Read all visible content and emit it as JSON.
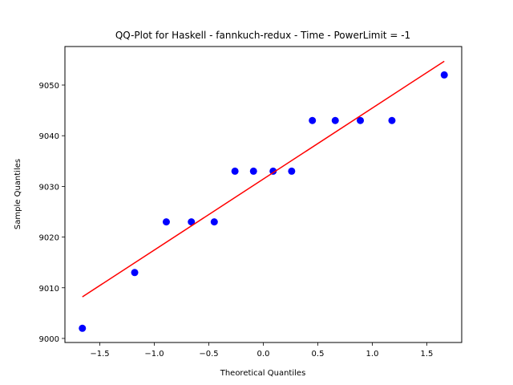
{
  "chart_data": {
    "type": "scatter",
    "title": "QQ-Plot for Haskell - fannkuch-redux - Time - PowerLimit = -1",
    "xlabel": "Theoretical Quantiles",
    "ylabel": "Sample Quantiles",
    "xlim": [
      -1.82,
      1.82
    ],
    "ylim": [
      8999.2,
      9057.6
    ],
    "xticks": [
      -1.5,
      -1.0,
      -0.5,
      0.0,
      0.5,
      1.0,
      1.5
    ],
    "xtick_labels": [
      "−1.5",
      "−1.0",
      "−0.5",
      "0.0",
      "0.5",
      "1.0",
      "1.5"
    ],
    "yticks": [
      9000,
      9010,
      9020,
      9030,
      9040,
      9050
    ],
    "ytick_labels": [
      "9000",
      "9010",
      "9020",
      "9030",
      "9040",
      "9050"
    ],
    "grid": false,
    "series": [
      {
        "kind": "points",
        "color": "#0000ff",
        "x": [
          -1.66,
          -1.18,
          -0.89,
          -0.66,
          -0.45,
          -0.26,
          -0.09,
          0.09,
          0.26,
          0.45,
          0.66,
          0.89,
          1.18,
          1.66
        ],
        "y": [
          9002,
          9013,
          9023,
          9023,
          9023,
          9033,
          9033,
          9033,
          9033,
          9043,
          9043,
          9043,
          9043,
          9052
        ]
      },
      {
        "kind": "line",
        "color": "#ff0000",
        "x": [
          -1.66,
          1.66
        ],
        "y": [
          9008.2,
          9054.7
        ]
      }
    ]
  }
}
